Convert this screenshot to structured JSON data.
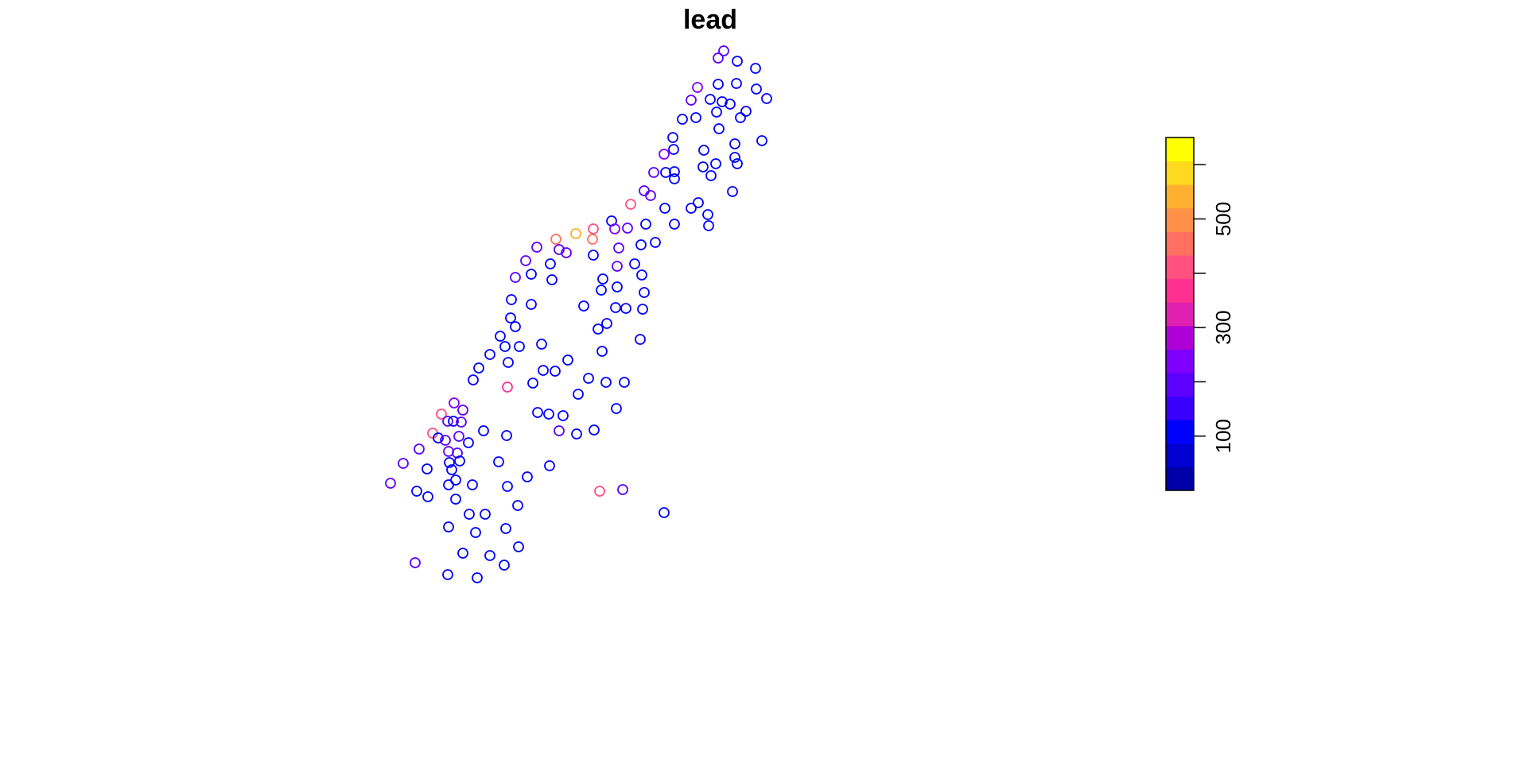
{
  "chart_data": {
    "type": "scatter",
    "title": "lead",
    "xlabel": "",
    "ylabel": "",
    "grid": false,
    "legend": "right",
    "colorbar": {
      "min": 0,
      "max": 650,
      "breaks": [
        0,
        50,
        100,
        150,
        200,
        250,
        300,
        350,
        400,
        450,
        500,
        550,
        600,
        650
      ],
      "colors": [
        "#0000A8",
        "#0000D0",
        "#0000FF",
        "#3A00FF",
        "#5C00FF",
        "#8000FF",
        "#B000D8",
        "#E020B0",
        "#FF2F90",
        "#FF5080",
        "#FF7060",
        "#FF9048",
        "#FFB030",
        "#FFD820",
        "#FFFF00"
      ],
      "ticks": [
        100,
        200,
        300,
        400,
        500,
        600
      ],
      "tick_labels": [
        "100",
        "",
        "300",
        "",
        "500",
        ""
      ]
    },
    "points": [
      {
        "x": 910,
        "y": 64,
        "v": 230
      },
      {
        "x": 903,
        "y": 73,
        "v": 240
      },
      {
        "x": 927,
        "y": 77,
        "v": 100
      },
      {
        "x": 950,
        "y": 86,
        "v": 100
      },
      {
        "x": 877,
        "y": 110,
        "v": 250
      },
      {
        "x": 903,
        "y": 106,
        "v": 100
      },
      {
        "x": 926,
        "y": 105,
        "v": 100
      },
      {
        "x": 951,
        "y": 112,
        "v": 100
      },
      {
        "x": 964,
        "y": 124,
        "v": 100
      },
      {
        "x": 869,
        "y": 126,
        "v": 240
      },
      {
        "x": 893,
        "y": 125,
        "v": 100
      },
      {
        "x": 908,
        "y": 128,
        "v": 100
      },
      {
        "x": 918,
        "y": 131,
        "v": 100
      },
      {
        "x": 901,
        "y": 141,
        "v": 100
      },
      {
        "x": 938,
        "y": 140,
        "v": 100
      },
      {
        "x": 931,
        "y": 148,
        "v": 100
      },
      {
        "x": 858,
        "y": 150,
        "v": 100
      },
      {
        "x": 875,
        "y": 148,
        "v": 100
      },
      {
        "x": 904,
        "y": 162,
        "v": 100
      },
      {
        "x": 846,
        "y": 173,
        "v": 100
      },
      {
        "x": 958,
        "y": 177,
        "v": 100
      },
      {
        "x": 924,
        "y": 181,
        "v": 100
      },
      {
        "x": 885,
        "y": 189,
        "v": 100
      },
      {
        "x": 847,
        "y": 188,
        "v": 100
      },
      {
        "x": 835,
        "y": 194,
        "v": 250
      },
      {
        "x": 924,
        "y": 198,
        "v": 100
      },
      {
        "x": 927,
        "y": 206,
        "v": 100
      },
      {
        "x": 900,
        "y": 206,
        "v": 100
      },
      {
        "x": 884,
        "y": 210,
        "v": 100
      },
      {
        "x": 822,
        "y": 217,
        "v": 240
      },
      {
        "x": 837,
        "y": 217,
        "v": 100
      },
      {
        "x": 848,
        "y": 216,
        "v": 100
      },
      {
        "x": 894,
        "y": 221,
        "v": 100
      },
      {
        "x": 848,
        "y": 225,
        "v": 100
      },
      {
        "x": 921,
        "y": 241,
        "v": 100
      },
      {
        "x": 810,
        "y": 240,
        "v": 230
      },
      {
        "x": 818,
        "y": 246,
        "v": 230
      },
      {
        "x": 793,
        "y": 257,
        "v": 450
      },
      {
        "x": 878,
        "y": 255,
        "v": 100
      },
      {
        "x": 869,
        "y": 262,
        "v": 100
      },
      {
        "x": 836,
        "y": 262,
        "v": 100
      },
      {
        "x": 890,
        "y": 270,
        "v": 100
      },
      {
        "x": 769,
        "y": 278,
        "v": 100
      },
      {
        "x": 812,
        "y": 282,
        "v": 100
      },
      {
        "x": 848,
        "y": 282,
        "v": 100
      },
      {
        "x": 891,
        "y": 284,
        "v": 100
      },
      {
        "x": 746,
        "y": 288,
        "v": 480
      },
      {
        "x": 773,
        "y": 288,
        "v": 250
      },
      {
        "x": 789,
        "y": 287,
        "v": 240
      },
      {
        "x": 724,
        "y": 294,
        "v": 640
      },
      {
        "x": 699,
        "y": 301,
        "v": 500
      },
      {
        "x": 745,
        "y": 301,
        "v": 520
      },
      {
        "x": 824,
        "y": 305,
        "v": 100
      },
      {
        "x": 675,
        "y": 311,
        "v": 240
      },
      {
        "x": 703,
        "y": 314,
        "v": 240
      },
      {
        "x": 806,
        "y": 308,
        "v": 100
      },
      {
        "x": 778,
        "y": 312,
        "v": 230
      },
      {
        "x": 712,
        "y": 318,
        "v": 230
      },
      {
        "x": 746,
        "y": 321,
        "v": 100
      },
      {
        "x": 661,
        "y": 328,
        "v": 240
      },
      {
        "x": 692,
        "y": 332,
        "v": 100
      },
      {
        "x": 798,
        "y": 332,
        "v": 100
      },
      {
        "x": 776,
        "y": 335,
        "v": 230
      },
      {
        "x": 648,
        "y": 349,
        "v": 230
      },
      {
        "x": 668,
        "y": 345,
        "v": 100
      },
      {
        "x": 807,
        "y": 346,
        "v": 100
      },
      {
        "x": 694,
        "y": 352,
        "v": 100
      },
      {
        "x": 758,
        "y": 351,
        "v": 100
      },
      {
        "x": 756,
        "y": 365,
        "v": 100
      },
      {
        "x": 776,
        "y": 361,
        "v": 100
      },
      {
        "x": 810,
        "y": 368,
        "v": 100
      },
      {
        "x": 643,
        "y": 377,
        "v": 100
      },
      {
        "x": 668,
        "y": 383,
        "v": 100
      },
      {
        "x": 734,
        "y": 385,
        "v": 100
      },
      {
        "x": 774,
        "y": 387,
        "v": 100
      },
      {
        "x": 787,
        "y": 388,
        "v": 100
      },
      {
        "x": 808,
        "y": 389,
        "v": 100
      },
      {
        "x": 642,
        "y": 400,
        "v": 100
      },
      {
        "x": 648,
        "y": 411,
        "v": 100
      },
      {
        "x": 763,
        "y": 407,
        "v": 100
      },
      {
        "x": 752,
        "y": 414,
        "v": 100
      },
      {
        "x": 629,
        "y": 423,
        "v": 100
      },
      {
        "x": 805,
        "y": 427,
        "v": 100
      },
      {
        "x": 635,
        "y": 436,
        "v": 100
      },
      {
        "x": 653,
        "y": 436,
        "v": 100
      },
      {
        "x": 681,
        "y": 433,
        "v": 100
      },
      {
        "x": 757,
        "y": 442,
        "v": 100
      },
      {
        "x": 616,
        "y": 446,
        "v": 100
      },
      {
        "x": 714,
        "y": 453,
        "v": 100
      },
      {
        "x": 639,
        "y": 456,
        "v": 100
      },
      {
        "x": 602,
        "y": 463,
        "v": 100
      },
      {
        "x": 683,
        "y": 466,
        "v": 100
      },
      {
        "x": 698,
        "y": 467,
        "v": 100
      },
      {
        "x": 595,
        "y": 478,
        "v": 100
      },
      {
        "x": 740,
        "y": 476,
        "v": 100
      },
      {
        "x": 670,
        "y": 482,
        "v": 100
      },
      {
        "x": 762,
        "y": 481,
        "v": 100
      },
      {
        "x": 785,
        "y": 481,
        "v": 100
      },
      {
        "x": 638,
        "y": 487,
        "v": 400
      },
      {
        "x": 727,
        "y": 496,
        "v": 100
      },
      {
        "x": 571,
        "y": 507,
        "v": 250
      },
      {
        "x": 775,
        "y": 514,
        "v": 100
      },
      {
        "x": 582,
        "y": 516,
        "v": 230
      },
      {
        "x": 555,
        "y": 521,
        "v": 460
      },
      {
        "x": 676,
        "y": 519,
        "v": 100
      },
      {
        "x": 690,
        "y": 521,
        "v": 100
      },
      {
        "x": 708,
        "y": 523,
        "v": 100
      },
      {
        "x": 563,
        "y": 530,
        "v": 230
      },
      {
        "x": 570,
        "y": 530,
        "v": 100
      },
      {
        "x": 580,
        "y": 531,
        "v": 230
      },
      {
        "x": 703,
        "y": 542,
        "v": 240
      },
      {
        "x": 608,
        "y": 542,
        "v": 100
      },
      {
        "x": 747,
        "y": 541,
        "v": 100
      },
      {
        "x": 544,
        "y": 545,
        "v": 480
      },
      {
        "x": 725,
        "y": 546,
        "v": 100
      },
      {
        "x": 637,
        "y": 548,
        "v": 100
      },
      {
        "x": 577,
        "y": 549,
        "v": 230
      },
      {
        "x": 551,
        "y": 551,
        "v": 100
      },
      {
        "x": 560,
        "y": 554,
        "v": 230
      },
      {
        "x": 589,
        "y": 557,
        "v": 100
      },
      {
        "x": 527,
        "y": 565,
        "v": 240
      },
      {
        "x": 564,
        "y": 568,
        "v": 230
      },
      {
        "x": 575,
        "y": 570,
        "v": 230
      },
      {
        "x": 507,
        "y": 583,
        "v": 230
      },
      {
        "x": 565,
        "y": 582,
        "v": 100
      },
      {
        "x": 578,
        "y": 580,
        "v": 100
      },
      {
        "x": 627,
        "y": 581,
        "v": 100
      },
      {
        "x": 691,
        "y": 586,
        "v": 100
      },
      {
        "x": 537,
        "y": 590,
        "v": 100
      },
      {
        "x": 568,
        "y": 591,
        "v": 100
      },
      {
        "x": 663,
        "y": 600,
        "v": 100
      },
      {
        "x": 573,
        "y": 604,
        "v": 100
      },
      {
        "x": 491,
        "y": 608,
        "v": 230
      },
      {
        "x": 564,
        "y": 610,
        "v": 100
      },
      {
        "x": 594,
        "y": 610,
        "v": 100
      },
      {
        "x": 638,
        "y": 612,
        "v": 100
      },
      {
        "x": 524,
        "y": 618,
        "v": 100
      },
      {
        "x": 754,
        "y": 618,
        "v": 460
      },
      {
        "x": 783,
        "y": 616,
        "v": 240
      },
      {
        "x": 538,
        "y": 625,
        "v": 100
      },
      {
        "x": 573,
        "y": 628,
        "v": 100
      },
      {
        "x": 651,
        "y": 636,
        "v": 100
      },
      {
        "x": 835,
        "y": 645,
        "v": 100
      },
      {
        "x": 590,
        "y": 647,
        "v": 100
      },
      {
        "x": 610,
        "y": 647,
        "v": 100
      },
      {
        "x": 564,
        "y": 663,
        "v": 100
      },
      {
        "x": 636,
        "y": 665,
        "v": 100
      },
      {
        "x": 598,
        "y": 670,
        "v": 100
      },
      {
        "x": 652,
        "y": 688,
        "v": 100
      },
      {
        "x": 582,
        "y": 696,
        "v": 100
      },
      {
        "x": 616,
        "y": 699,
        "v": 100
      },
      {
        "x": 522,
        "y": 708,
        "v": 230
      },
      {
        "x": 634,
        "y": 711,
        "v": 100
      },
      {
        "x": 563,
        "y": 723,
        "v": 100
      },
      {
        "x": 600,
        "y": 727,
        "v": 100
      }
    ]
  }
}
